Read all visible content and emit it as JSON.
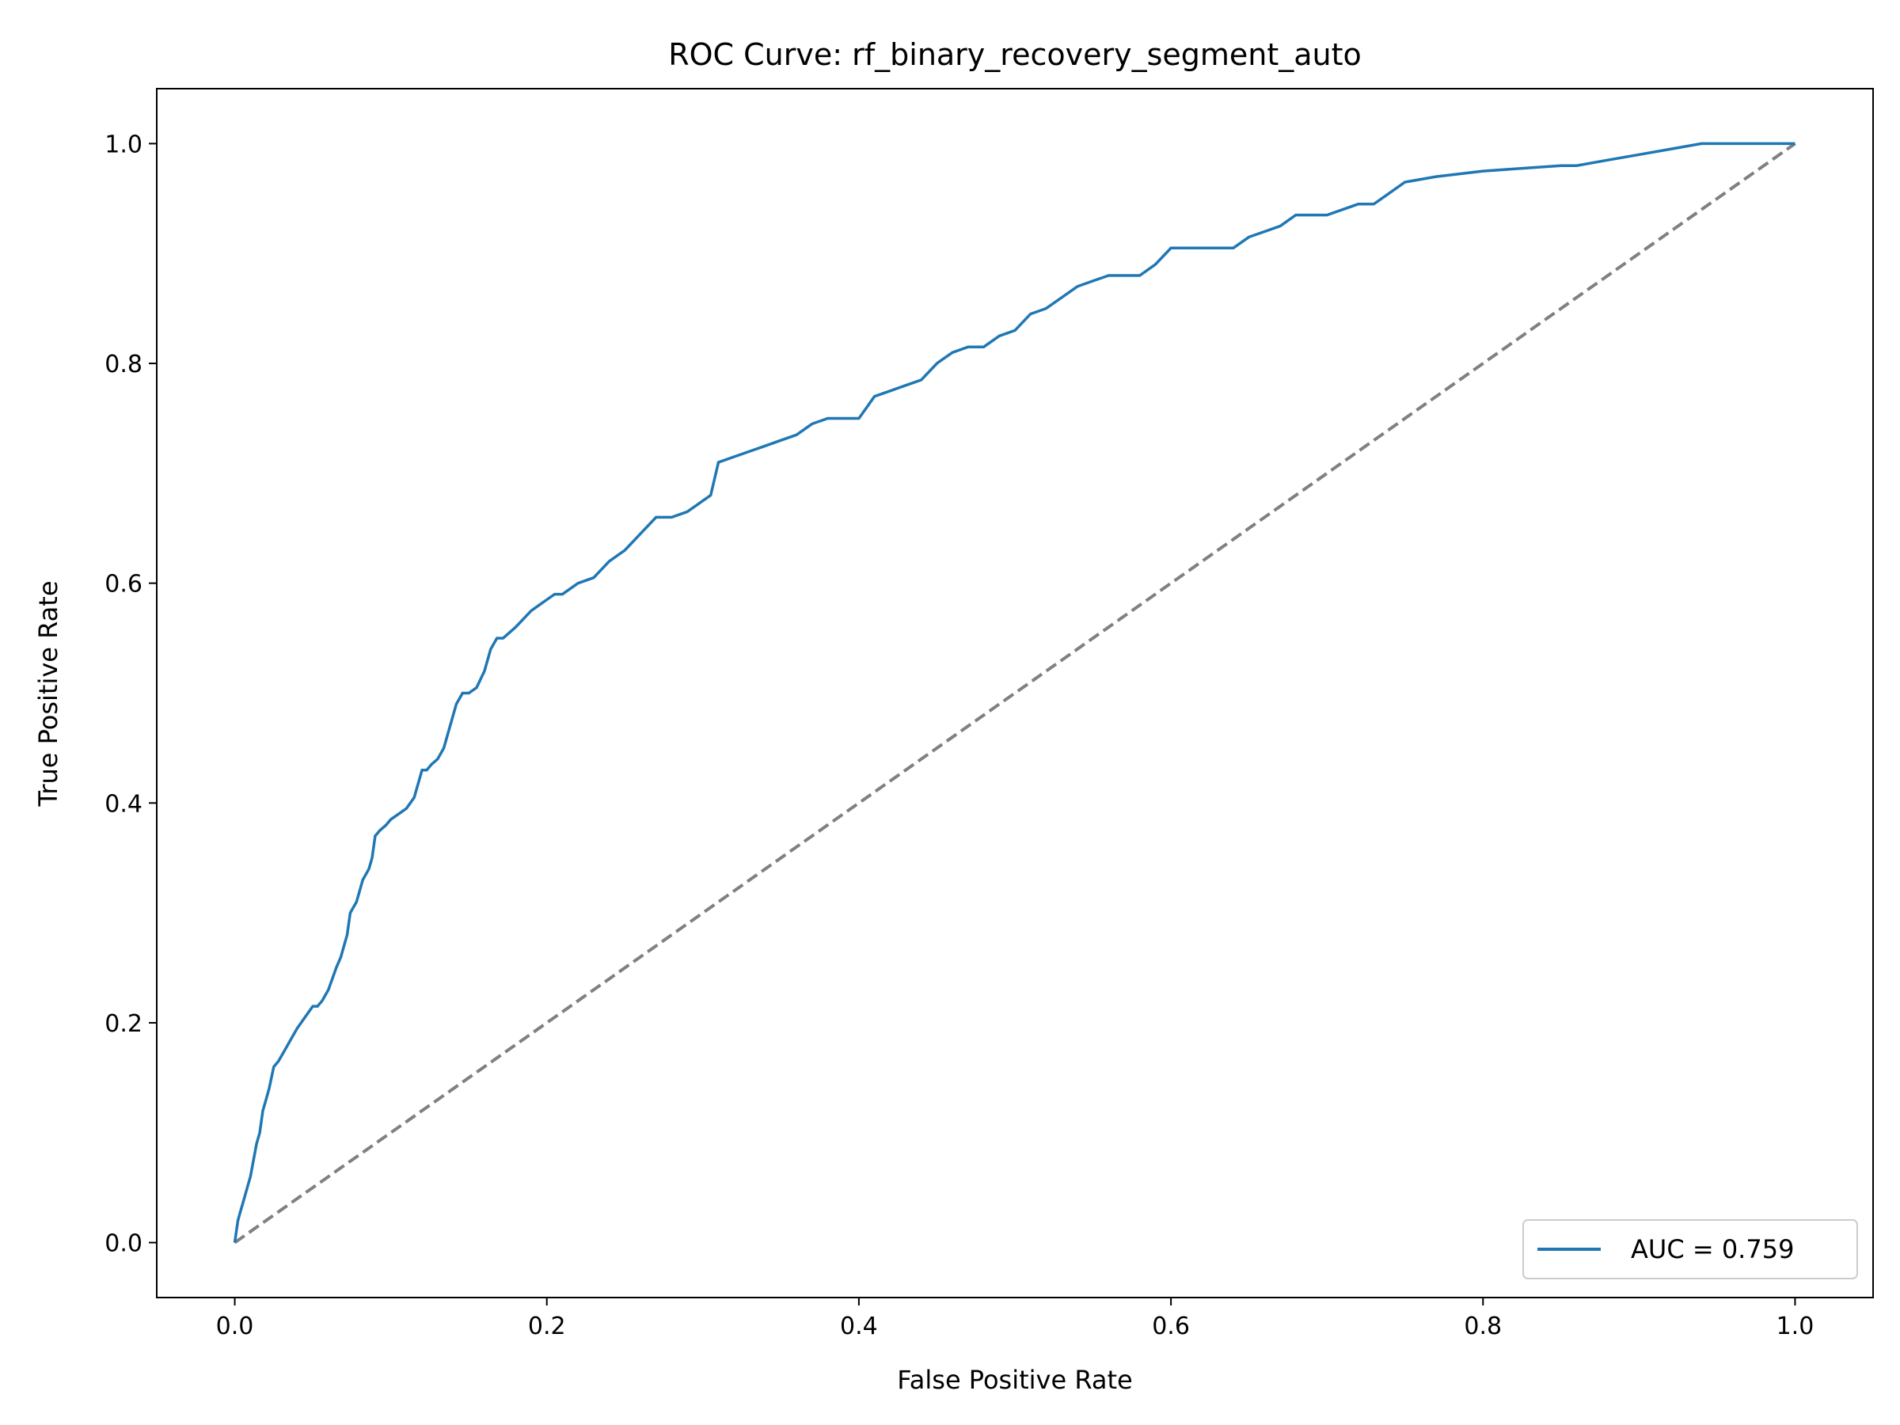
{
  "chart_data": {
    "type": "line",
    "title": "ROC Curve: rf_binary_recovery_segment_auto",
    "xlabel": "False Positive Rate",
    "ylabel": "True Positive Rate",
    "xlim": [
      -0.05,
      1.05
    ],
    "ylim": [
      -0.05,
      1.05
    ],
    "xticks": [
      "0.0",
      "0.2",
      "0.4",
      "0.6",
      "0.8",
      "1.0"
    ],
    "yticks": [
      "0.0",
      "0.2",
      "0.4",
      "0.6",
      "0.8",
      "1.0"
    ],
    "grid": false,
    "legend_position": "lower-right",
    "series": [
      {
        "name": "AUC = 0.759",
        "color": "#1f77b4",
        "style": "solid",
        "x": [
          0.0,
          0.002,
          0.004,
          0.006,
          0.008,
          0.01,
          0.012,
          0.014,
          0.016,
          0.018,
          0.02,
          0.022,
          0.025,
          0.028,
          0.032,
          0.036,
          0.04,
          0.045,
          0.05,
          0.053,
          0.056,
          0.06,
          0.065,
          0.068,
          0.07,
          0.072,
          0.074,
          0.078,
          0.082,
          0.086,
          0.088,
          0.09,
          0.093,
          0.097,
          0.1,
          0.105,
          0.11,
          0.115,
          0.12,
          0.123,
          0.126,
          0.13,
          0.134,
          0.138,
          0.142,
          0.146,
          0.15,
          0.155,
          0.16,
          0.164,
          0.168,
          0.172,
          0.18,
          0.19,
          0.2,
          0.205,
          0.21,
          0.22,
          0.23,
          0.24,
          0.25,
          0.26,
          0.27,
          0.28,
          0.29,
          0.3,
          0.305,
          0.31,
          0.32,
          0.33,
          0.34,
          0.35,
          0.36,
          0.37,
          0.38,
          0.39,
          0.4,
          0.405,
          0.41,
          0.42,
          0.43,
          0.44,
          0.45,
          0.455,
          0.46,
          0.47,
          0.48,
          0.49,
          0.5,
          0.51,
          0.52,
          0.53,
          0.54,
          0.55,
          0.56,
          0.57,
          0.58,
          0.59,
          0.6,
          0.61,
          0.62,
          0.64,
          0.645,
          0.65,
          0.66,
          0.67,
          0.68,
          0.7,
          0.72,
          0.73,
          0.74,
          0.75,
          0.77,
          0.8,
          0.85,
          0.86,
          0.88,
          0.9,
          0.92,
          0.94,
          0.96,
          1.0
        ],
        "y": [
          0.0,
          0.02,
          0.03,
          0.04,
          0.05,
          0.06,
          0.075,
          0.09,
          0.1,
          0.12,
          0.13,
          0.14,
          0.16,
          0.165,
          0.175,
          0.185,
          0.195,
          0.205,
          0.215,
          0.215,
          0.22,
          0.23,
          0.25,
          0.26,
          0.27,
          0.28,
          0.3,
          0.31,
          0.33,
          0.34,
          0.35,
          0.37,
          0.375,
          0.38,
          0.385,
          0.39,
          0.395,
          0.405,
          0.43,
          0.43,
          0.435,
          0.44,
          0.45,
          0.47,
          0.49,
          0.5,
          0.5,
          0.505,
          0.52,
          0.54,
          0.55,
          0.55,
          0.56,
          0.575,
          0.585,
          0.59,
          0.59,
          0.6,
          0.605,
          0.62,
          0.63,
          0.645,
          0.66,
          0.66,
          0.665,
          0.675,
          0.68,
          0.71,
          0.715,
          0.72,
          0.725,
          0.73,
          0.735,
          0.745,
          0.75,
          0.75,
          0.75,
          0.76,
          0.77,
          0.775,
          0.78,
          0.785,
          0.8,
          0.805,
          0.81,
          0.815,
          0.815,
          0.825,
          0.83,
          0.845,
          0.85,
          0.86,
          0.87,
          0.875,
          0.88,
          0.88,
          0.88,
          0.89,
          0.905,
          0.905,
          0.905,
          0.905,
          0.91,
          0.915,
          0.92,
          0.925,
          0.935,
          0.935,
          0.945,
          0.945,
          0.955,
          0.965,
          0.97,
          0.975,
          0.98,
          0.98,
          0.985,
          0.99,
          0.995,
          1.0,
          1.0,
          1.0
        ]
      },
      {
        "color": "#808080",
        "style": "dashed",
        "x": [
          0.0,
          1.0
        ],
        "y": [
          0.0,
          1.0
        ]
      }
    ]
  }
}
